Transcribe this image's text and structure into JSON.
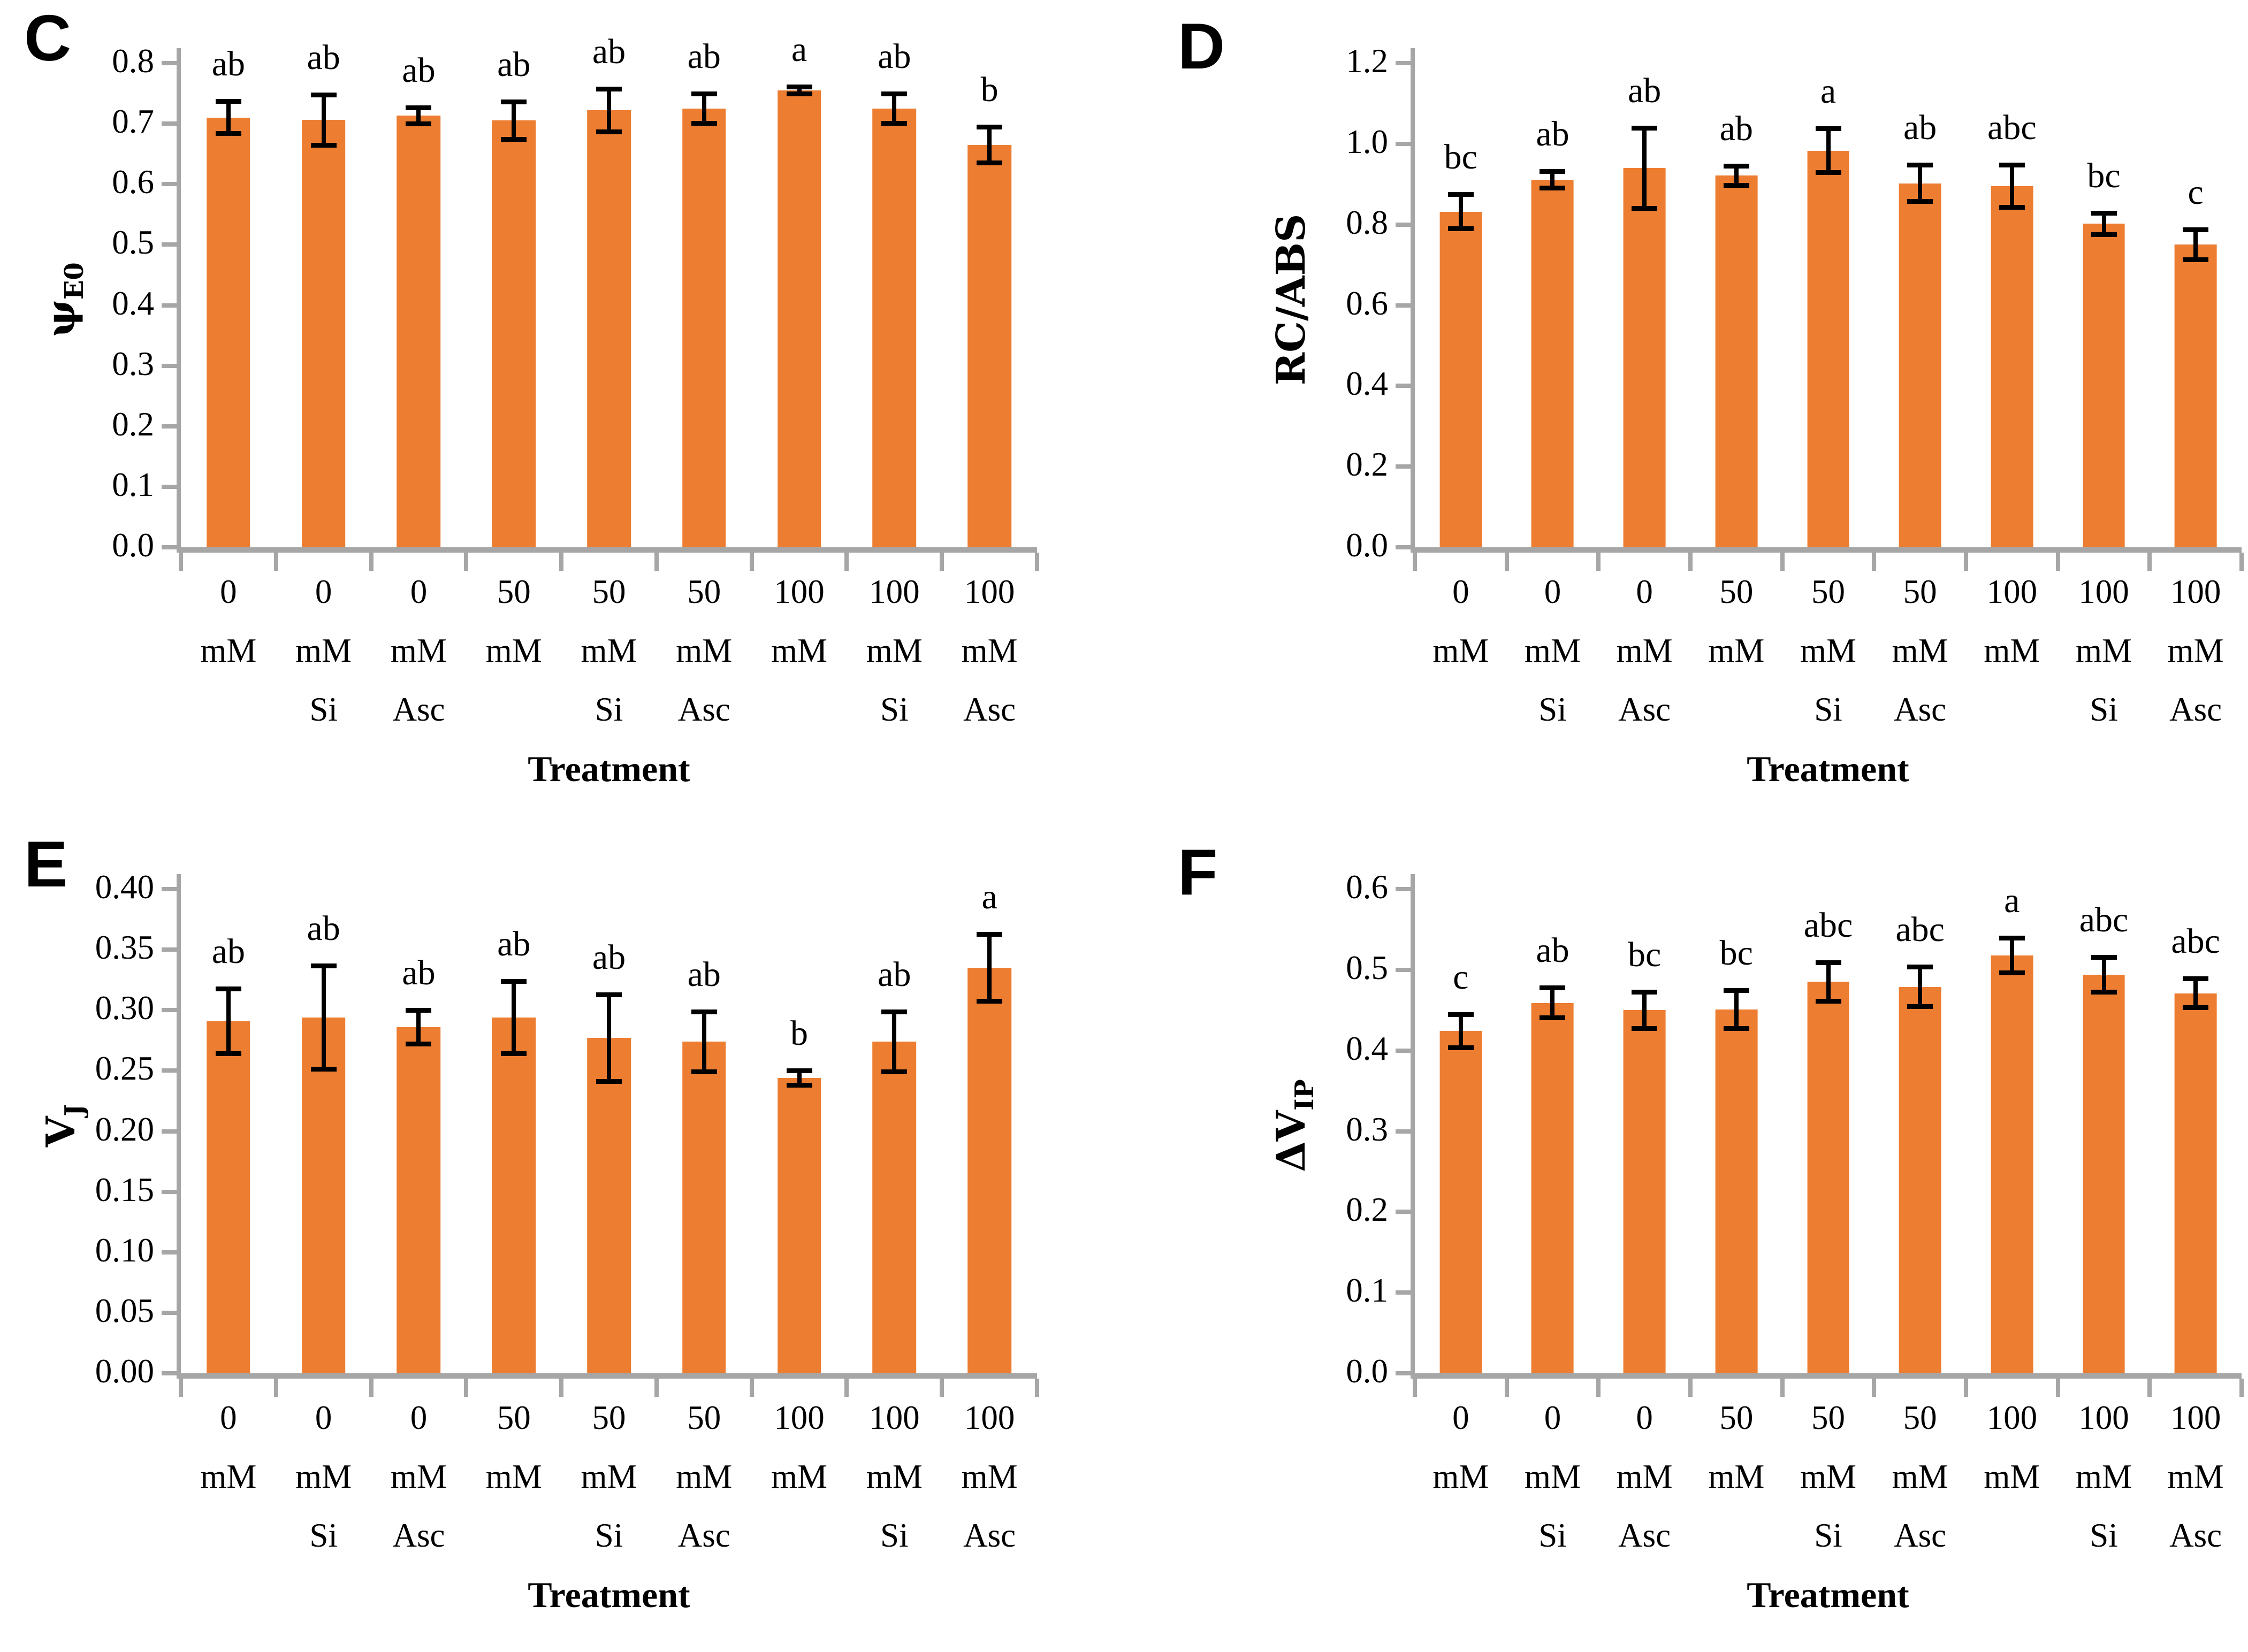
{
  "figure": {
    "background": "#FFFFFF",
    "bar_color": "#ED7D31",
    "axis_color": "#A6A6A6",
    "error_bar_color": "#000000",
    "text_color": "#000000",
    "category_lines": [
      [
        "0",
        "mM",
        ""
      ],
      [
        "0",
        "mM",
        "Si"
      ],
      [
        "0",
        "mM",
        "Asc"
      ],
      [
        "50",
        "mM",
        ""
      ],
      [
        "50",
        "mM",
        "Si"
      ],
      [
        "50",
        "mM",
        "Asc"
      ],
      [
        "100",
        "mM",
        ""
      ],
      [
        "100",
        "mM",
        "Si"
      ],
      [
        "100",
        "mM",
        "Asc"
      ]
    ]
  },
  "chart_data": [
    {
      "panel": "C",
      "type": "bar",
      "title": "",
      "xlabel": "Treatment",
      "ylabel": "ψE0",
      "ylabel_main": "ψ",
      "ylabel_sub": "E0",
      "ylim": [
        0,
        0.8
      ],
      "ytick_step": 0.1,
      "ytick_decimals": 1,
      "grid": "off",
      "legend": "none",
      "categories": [
        "0 mM",
        "0 mM Si",
        "0 mM Asc",
        "50 mM",
        "50 mM Si",
        "50 mM Asc",
        "100 mM",
        "100 mM Si",
        "100 mM Asc"
      ],
      "values": [
        0.71,
        0.706,
        0.713,
        0.705,
        0.722,
        0.725,
        0.755,
        0.725,
        0.665
      ],
      "errors": [
        0.027,
        0.042,
        0.014,
        0.031,
        0.036,
        0.025,
        0.006,
        0.025,
        0.03
      ],
      "sig_letters": [
        "ab",
        "ab",
        "ab",
        "ab",
        "ab",
        "ab",
        "a",
        "ab",
        "b"
      ]
    },
    {
      "panel": "D",
      "type": "bar",
      "title": "",
      "xlabel": "Treatment",
      "ylabel": "RC/ABS",
      "ylabel_main": "RC/ABS",
      "ylabel_sub": "",
      "ylim": [
        0,
        1.2
      ],
      "ytick_step": 0.2,
      "ytick_decimals": 1,
      "grid": "off",
      "legend": "none",
      "categories": [
        "0 mM",
        "0 mM Si",
        "0 mM Asc",
        "50 mM",
        "50 mM Si",
        "50 mM Asc",
        "100 mM",
        "100 mM Si",
        "100 mM Asc"
      ],
      "values": [
        0.832,
        0.911,
        0.94,
        0.921,
        0.983,
        0.902,
        0.895,
        0.802,
        0.75
      ],
      "errors": [
        0.043,
        0.021,
        0.1,
        0.025,
        0.055,
        0.046,
        0.053,
        0.027,
        0.038
      ],
      "sig_letters": [
        "bc",
        "ab",
        "ab",
        "ab",
        "a",
        "ab",
        "abc",
        "bc",
        "c"
      ]
    },
    {
      "panel": "E",
      "type": "bar",
      "title": "",
      "xlabel": "Treatment",
      "ylabel": "VJ",
      "ylabel_main": "V",
      "ylabel_sub": "J",
      "ylim": [
        0,
        0.4
      ],
      "ytick_step": 0.05,
      "ytick_decimals": 2,
      "grid": "off",
      "legend": "none",
      "categories": [
        "0 mM",
        "0 mM Si",
        "0 mM Asc",
        "50 mM",
        "50 mM Si",
        "50 mM Asc",
        "100 mM",
        "100 mM Si",
        "100 mM Asc"
      ],
      "values": [
        0.291,
        0.294,
        0.286,
        0.294,
        0.277,
        0.274,
        0.244,
        0.274,
        0.335
      ],
      "errors": [
        0.027,
        0.043,
        0.014,
        0.03,
        0.036,
        0.025,
        0.006,
        0.025,
        0.028
      ],
      "sig_letters": [
        "ab",
        "ab",
        "ab",
        "ab",
        "ab",
        "ab",
        "b",
        "ab",
        "a"
      ]
    },
    {
      "panel": "F",
      "type": "bar",
      "title": "",
      "xlabel": "Treatment",
      "ylabel": "ΔVIP",
      "ylabel_main": "ΔV",
      "ylabel_sub": "IP",
      "ylim": [
        0,
        0.6
      ],
      "ytick_step": 0.1,
      "ytick_decimals": 1,
      "grid": "off",
      "legend": "none",
      "categories": [
        "0 mM",
        "0 mM Si",
        "0 mM Asc",
        "50 mM",
        "50 mM Si",
        "50 mM Asc",
        "100 mM",
        "100 mM Si",
        "100 mM Asc"
      ],
      "values": [
        0.424,
        0.459,
        0.45,
        0.451,
        0.485,
        0.479,
        0.518,
        0.494,
        0.471
      ],
      "errors": [
        0.021,
        0.019,
        0.023,
        0.024,
        0.024,
        0.025,
        0.022,
        0.022,
        0.018
      ],
      "sig_letters": [
        "c",
        "ab",
        "bc",
        "bc",
        "abc",
        "abc",
        "a",
        "abc",
        "abc"
      ]
    }
  ]
}
